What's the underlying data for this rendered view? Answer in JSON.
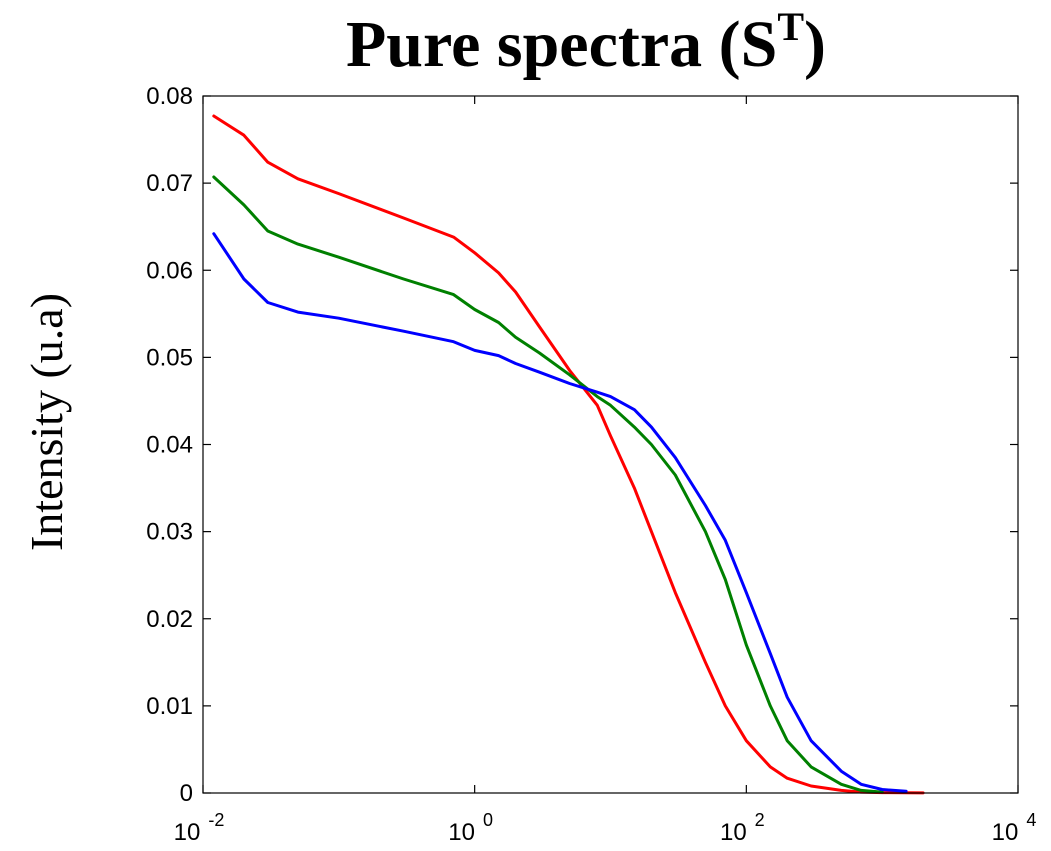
{
  "chart_data": {
    "type": "line",
    "title": "Pure spectra (S",
    "title_superscript": "T",
    "title_close": ")",
    "ylabel": "Intensity (u.a)",
    "xlabel": "",
    "xscale": "log",
    "xlim": [
      0.01,
      10000
    ],
    "ylim": [
      0,
      0.08
    ],
    "grid": false,
    "x_ticks": [
      {
        "base": "10",
        "exp": "-2",
        "value": 0.01
      },
      {
        "base": "10",
        "exp": "0",
        "value": 1
      },
      {
        "base": "10",
        "exp": "2",
        "value": 100
      },
      {
        "base": "10",
        "exp": "4",
        "value": 10000
      }
    ],
    "y_ticks": [
      {
        "label": "0",
        "value": 0
      },
      {
        "label": "0.01",
        "value": 0.01
      },
      {
        "label": "0.02",
        "value": 0.02
      },
      {
        "label": "0.03",
        "value": 0.03
      },
      {
        "label": "0.04",
        "value": 0.04
      },
      {
        "label": "0.05",
        "value": 0.05
      },
      {
        "label": "0.06",
        "value": 0.06
      },
      {
        "label": "0.07",
        "value": 0.07
      },
      {
        "label": "0.08",
        "value": 0.08
      }
    ],
    "series": [
      {
        "color": "#ff0000",
        "x": [
          0.012,
          0.02,
          0.03,
          0.05,
          0.1,
          0.3,
          0.7,
          1.0,
          1.5,
          2.0,
          3.0,
          5.0,
          8.0,
          10,
          15,
          20,
          30,
          50,
          70,
          100,
          150,
          200,
          300,
          500,
          700,
          1000,
          1500,
          2000
        ],
        "y": [
          0.0777,
          0.0755,
          0.0724,
          0.0705,
          0.0688,
          0.066,
          0.0638,
          0.062,
          0.0597,
          0.0575,
          0.0535,
          0.0485,
          0.0445,
          0.041,
          0.035,
          0.03,
          0.023,
          0.015,
          0.01,
          0.006,
          0.003,
          0.0017,
          0.0008,
          0.0003,
          0.0001,
          5e-05,
          2e-05,
          1e-05
        ]
      },
      {
        "color": "#008000",
        "x": [
          0.012,
          0.02,
          0.03,
          0.05,
          0.1,
          0.3,
          0.7,
          1.0,
          1.5,
          2.0,
          3.0,
          5.0,
          8.0,
          10,
          15,
          20,
          30,
          50,
          70,
          100,
          150,
          200,
          300,
          500,
          700,
          1000
        ],
        "y": [
          0.0707,
          0.0675,
          0.0645,
          0.063,
          0.0615,
          0.059,
          0.0572,
          0.0555,
          0.054,
          0.0523,
          0.0505,
          0.048,
          0.0455,
          0.0445,
          0.042,
          0.04,
          0.0365,
          0.03,
          0.0245,
          0.017,
          0.01,
          0.006,
          0.003,
          0.001,
          0.0003,
          0.0001
        ]
      },
      {
        "color": "#0000ff",
        "x": [
          0.012,
          0.02,
          0.03,
          0.05,
          0.1,
          0.3,
          0.7,
          1.0,
          1.5,
          2.0,
          3.0,
          5.0,
          8.0,
          10,
          15,
          20,
          30,
          50,
          70,
          100,
          150,
          200,
          300,
          500,
          700,
          1000,
          1500
        ],
        "y": [
          0.0642,
          0.059,
          0.0563,
          0.0552,
          0.0545,
          0.053,
          0.0518,
          0.0508,
          0.0502,
          0.0493,
          0.0483,
          0.047,
          0.046,
          0.0455,
          0.044,
          0.042,
          0.0385,
          0.033,
          0.029,
          0.023,
          0.016,
          0.011,
          0.006,
          0.0025,
          0.001,
          0.0004,
          0.0002
        ]
      }
    ]
  }
}
